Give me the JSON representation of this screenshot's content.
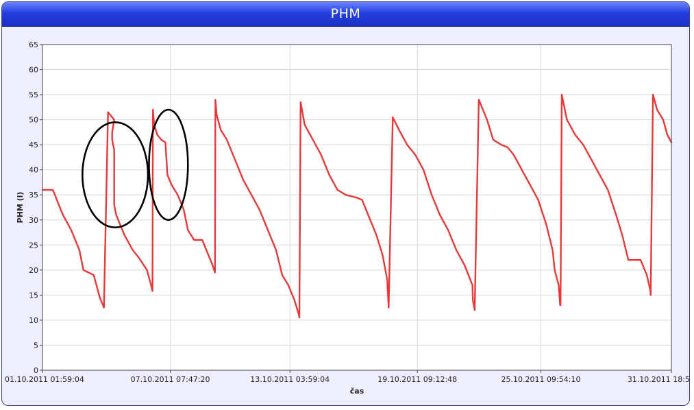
{
  "panel": {
    "title": "PHM"
  },
  "chart_data": {
    "type": "line",
    "title": "PHM",
    "xlabel": "čas",
    "ylabel": "PHM (l)",
    "ylim": [
      0,
      65
    ],
    "yticks": [
      0,
      5,
      10,
      15,
      20,
      25,
      30,
      35,
      40,
      45,
      50,
      55,
      60,
      65
    ],
    "xlim_days": [
      0,
      30.7
    ],
    "xticks": [
      {
        "day": 0,
        "label": "01.10.2011 01:59:04"
      },
      {
        "day": 6.24,
        "label": "07.10.2011 07:47:20"
      },
      {
        "day": 12.08,
        "label": "13.10.2011 03:59:04"
      },
      {
        "day": 18.3,
        "label": "19.10.2011 09:12:48"
      },
      {
        "day": 24.33,
        "label": "25.10.2011 09:54:10"
      },
      {
        "day": 30.7,
        "label": "31.10.2011 18:5"
      }
    ],
    "grid": true,
    "legend": "none",
    "series_color": "#e8393a",
    "series": [
      {
        "x": [
          0,
          0.5,
          0.56,
          0.8,
          1.0,
          1.4,
          1.8,
          2.0,
          2.5,
          2.7,
          2.8,
          3.0,
          3.2,
          3.5,
          3.4,
          3.4,
          3.5,
          3.5,
          3.5,
          3.6,
          3.7,
          4.0,
          4.4,
          4.7,
          5.1,
          5.3,
          5.37,
          5.39,
          5.45,
          5.6,
          5.8,
          6.0,
          6.1,
          6.3,
          6.6,
          6.9,
          7.1,
          7.4,
          7.8,
          8.1,
          8.3,
          8.42,
          8.44,
          8.5,
          8.7,
          9.0,
          9.4,
          9.8,
          10.2,
          10.6,
          11.0,
          11.4,
          11.7,
          12.0,
          12.3,
          12.52,
          12.54,
          12.6,
          12.8,
          13.2,
          13.6,
          14.0,
          14.4,
          14.8,
          15.3,
          15.6,
          16.0,
          16.3,
          16.6,
          16.83,
          16.85,
          16.9,
          17.1,
          17.4,
          17.8,
          18.2,
          18.6,
          19.0,
          19.4,
          19.8,
          20.2,
          20.6,
          20.99,
          21.01,
          21.1,
          21.3,
          21.7,
          22.0,
          22.4,
          22.7,
          23.0,
          23.4,
          23.8,
          24.2,
          24.6,
          24.9,
          25.0,
          25.2,
          25.27,
          25.29,
          25.35,
          25.6,
          26.0,
          26.4,
          26.8,
          27.2,
          27.6,
          28.0,
          28.3,
          28.6,
          28.9,
          29.2,
          29.5,
          29.67,
          29.69,
          29.8,
          30.0,
          30.3,
          30.5,
          30.7
        ],
        "y": [
          36,
          36,
          35.5,
          33,
          31,
          28,
          24,
          20,
          19,
          16,
          14.5,
          12.5,
          51.5,
          50,
          47.5,
          46,
          44,
          40,
          33,
          31,
          30,
          27,
          24,
          22.5,
          20,
          17,
          15.8,
          52,
          49,
          47,
          46,
          45.5,
          39,
          37,
          35,
          32,
          28,
          26,
          26,
          23,
          21,
          19.5,
          54,
          51,
          48,
          46,
          42,
          38,
          35,
          32,
          28,
          24,
          19,
          17,
          14,
          11,
          10.5,
          53.5,
          49,
          46,
          43,
          39,
          36,
          35,
          34.5,
          34,
          30,
          27,
          23,
          18,
          16,
          12.5,
          50.5,
          48,
          45,
          43,
          40,
          35,
          31,
          28,
          24,
          21,
          17,
          14,
          12,
          54,
          50,
          46,
          45,
          44.5,
          43,
          40,
          37,
          34,
          29,
          24,
          20,
          17,
          13,
          13,
          55,
          50,
          47,
          45,
          42,
          39,
          36,
          31,
          27,
          22,
          22,
          22,
          19,
          16,
          15,
          55,
          52,
          50,
          47,
          45.5
        ]
      }
    ],
    "annotations": [
      {
        "type": "ellipse",
        "cx_day": 3.55,
        "cy": 39,
        "rx_day": 1.6,
        "ry": 10.5,
        "color": "#000000"
      },
      {
        "type": "ellipse",
        "cx_day": 6.15,
        "cy": 41,
        "rx_day": 0.95,
        "ry": 11,
        "color": "#000000"
      }
    ]
  }
}
